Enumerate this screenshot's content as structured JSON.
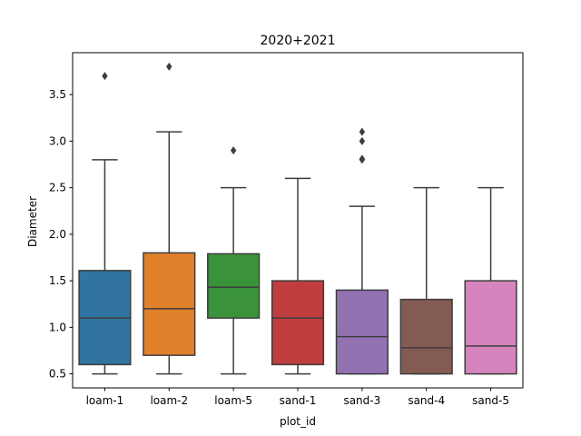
{
  "chart_data": {
    "type": "box",
    "title": "2020+2021",
    "xlabel": "plot_id",
    "ylabel": "Diameter",
    "ylim": [
      0.35,
      3.95
    ],
    "yticks": [
      0.5,
      1.0,
      1.5,
      2.0,
      2.5,
      3.0,
      3.5
    ],
    "ytick_labels": [
      "0.5",
      "1.0",
      "1.5",
      "2.0",
      "2.5",
      "3.0",
      "3.5"
    ],
    "grid": false,
    "categories": [
      "loam-1",
      "loam-2",
      "loam-5",
      "sand-1",
      "sand-3",
      "sand-4",
      "sand-5"
    ],
    "series": [
      {
        "category": "loam-1",
        "color": "#3274a1",
        "whisker_low": 0.5,
        "q1": 0.6,
        "median": 1.1,
        "q3": 1.61,
        "whisker_high": 2.8,
        "outliers": [
          3.7
        ]
      },
      {
        "category": "loam-2",
        "color": "#e1812c",
        "whisker_low": 0.5,
        "q1": 0.7,
        "median": 1.2,
        "q3": 1.8,
        "whisker_high": 3.1,
        "outliers": [
          3.8
        ]
      },
      {
        "category": "loam-5",
        "color": "#3a923a",
        "whisker_low": 0.5,
        "q1": 1.1,
        "median": 1.43,
        "q3": 1.79,
        "whisker_high": 2.5,
        "outliers": [
          2.9
        ]
      },
      {
        "category": "sand-1",
        "color": "#c03d3e",
        "whisker_low": 0.5,
        "q1": 0.6,
        "median": 1.1,
        "q3": 1.5,
        "whisker_high": 2.6,
        "outliers": []
      },
      {
        "category": "sand-3",
        "color": "#9372b2",
        "whisker_low": 0.5,
        "q1": 0.5,
        "median": 0.9,
        "q3": 1.4,
        "whisker_high": 2.3,
        "outliers": [
          2.8,
          2.81,
          3.0,
          3.1
        ]
      },
      {
        "category": "sand-4",
        "color": "#845b53",
        "whisker_low": 0.5,
        "q1": 0.5,
        "median": 0.78,
        "q3": 1.3,
        "whisker_high": 2.5,
        "outliers": []
      },
      {
        "category": "sand-5",
        "color": "#d684bd",
        "whisker_low": 0.5,
        "q1": 0.5,
        "median": 0.8,
        "q3": 1.5,
        "whisker_high": 2.5,
        "outliers": []
      }
    ]
  }
}
